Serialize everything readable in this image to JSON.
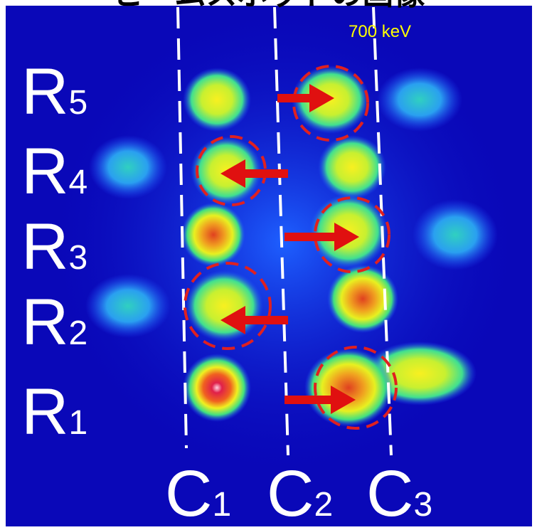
{
  "title": "ビームスポットの画像",
  "energy": "700 keV",
  "rows": [
    {
      "letter": "R",
      "index": "5"
    },
    {
      "letter": "R",
      "index": "4"
    },
    {
      "letter": "R",
      "index": "3"
    },
    {
      "letter": "R",
      "index": "2"
    },
    {
      "letter": "R",
      "index": "1"
    }
  ],
  "columns": [
    {
      "letter": "C",
      "index": "1"
    },
    {
      "letter": "C",
      "index": "2"
    },
    {
      "letter": "C",
      "index": "3"
    }
  ]
}
